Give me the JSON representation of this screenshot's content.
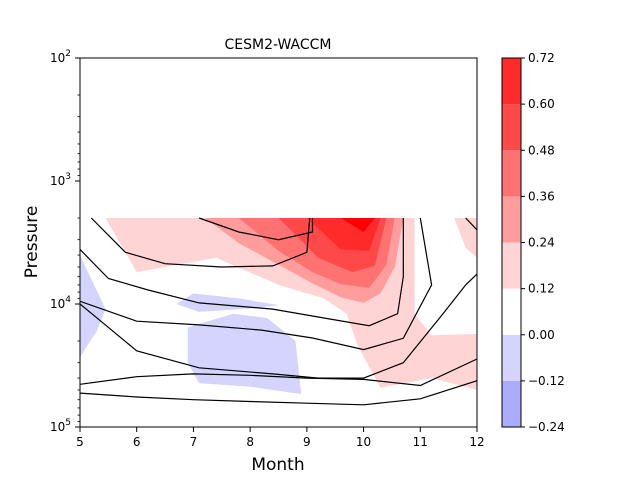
{
  "chart_data": {
    "type": "contour",
    "title": "CESM2-WACCM",
    "xlabel": "Month",
    "ylabel": "Pressure",
    "x_range": [
      5,
      12
    ],
    "y_range": [
      100000,
      100
    ],
    "y_scale": "log",
    "x_ticks": [
      "5",
      "6",
      "7",
      "8",
      "9",
      "10",
      "11",
      "12"
    ],
    "y_ticks": [
      {
        "value": 100,
        "base": "10",
        "exp": "2"
      },
      {
        "value": 1000,
        "base": "10",
        "exp": "3"
      },
      {
        "value": 10000,
        "base": "10",
        "exp": "4"
      },
      {
        "value": 100000,
        "base": "10",
        "exp": "5"
      }
    ],
    "grid": false,
    "colorbar": {
      "levels": [
        -0.24,
        -0.12,
        0.0,
        0.12,
        0.24,
        0.36,
        0.48,
        0.6,
        0.72
      ],
      "tick_labels": [
        "0.72",
        "0.60",
        "0.48",
        "0.36",
        "0.24",
        "0.12",
        "0.00",
        "−0.12",
        "−0.24"
      ],
      "colors": [
        "#ababff",
        "#d4d4ff",
        "#ffffff",
        "#ffd4d4",
        "#ff9c9c",
        "#ff7272",
        "#ff4848",
        "#ff2a2a",
        "#ff0000"
      ]
    },
    "filled_regions": [
      {
        "level": 0.12,
        "color": "#ffd4d4",
        "points": [
          [
            5.45,
            2000
          ],
          [
            10.9,
            2000
          ],
          [
            10.9,
            12000
          ],
          [
            11.2,
            18000
          ],
          [
            12,
            17500
          ],
          [
            12,
            50000
          ],
          [
            11.2,
            40000
          ],
          [
            10.3,
            48000
          ],
          [
            9.9,
            22000
          ],
          [
            9.7,
            12000
          ],
          [
            9.3,
            9000
          ],
          [
            8.5,
            7000
          ],
          [
            7.4,
            4200
          ],
          [
            6,
            5500
          ],
          [
            5.45,
            2000
          ]
        ]
      },
      {
        "level": 0.12,
        "color": "#ffd4d4",
        "points": [
          [
            11.6,
            2000
          ],
          [
            12,
            2000
          ],
          [
            12,
            4200
          ],
          [
            11.8,
            3500
          ],
          [
            11.6,
            2000
          ]
        ]
      },
      {
        "level": 0.24,
        "color": "#ff9c9c",
        "points": [
          [
            7.2,
            2000
          ],
          [
            10.7,
            2000
          ],
          [
            10.55,
            5000
          ],
          [
            10.3,
            8200
          ],
          [
            10,
            9800
          ],
          [
            9.6,
            8800
          ],
          [
            9.1,
            6800
          ],
          [
            8.5,
            4800
          ],
          [
            7.8,
            3200
          ],
          [
            7.2,
            2000
          ]
        ]
      },
      {
        "level": 0.36,
        "color": "#ff7272",
        "points": [
          [
            7.8,
            2000
          ],
          [
            10.55,
            2000
          ],
          [
            10.4,
            4800
          ],
          [
            10.1,
            7400
          ],
          [
            9.6,
            6900
          ],
          [
            9.1,
            5500
          ],
          [
            8.5,
            3700
          ],
          [
            7.8,
            2000
          ]
        ]
      },
      {
        "level": 0.48,
        "color": "#ff4848",
        "points": [
          [
            8.5,
            2000
          ],
          [
            10.4,
            2000
          ],
          [
            10.2,
            4900
          ],
          [
            9.8,
            5500
          ],
          [
            9.2,
            4200
          ],
          [
            8.5,
            2000
          ]
        ]
      },
      {
        "level": 0.6,
        "color": "#ff2a2a",
        "points": [
          [
            9.0,
            2000
          ],
          [
            10.3,
            2000
          ],
          [
            10.1,
            3700
          ],
          [
            9.6,
            3600
          ],
          [
            9.0,
            2000
          ]
        ]
      },
      {
        "level": 0.72,
        "color": "#ff0000",
        "points": [
          [
            9.6,
            2000
          ],
          [
            10.2,
            2000
          ],
          [
            10.0,
            2600
          ],
          [
            9.6,
            2000
          ]
        ]
      },
      {
        "level": -0.12,
        "color": "#d4d4ff",
        "points": [
          [
            5,
            4000
          ],
          [
            5.45,
            11000
          ],
          [
            5.3,
            16500
          ],
          [
            5,
            27000
          ]
        ]
      },
      {
        "level": -0.12,
        "color": "#d4d4ff",
        "points": [
          [
            6.7,
            10000
          ],
          [
            7.0,
            8200
          ],
          [
            7.8,
            9000
          ],
          [
            8.5,
            10200
          ],
          [
            8.1,
            10800
          ],
          [
            7.1,
            11600
          ],
          [
            6.7,
            10000
          ]
        ]
      },
      {
        "level": -0.12,
        "color": "#d4d4ff",
        "points": [
          [
            6.9,
            15500
          ],
          [
            7.7,
            12000
          ],
          [
            8.3,
            13000
          ],
          [
            8.8,
            20000
          ],
          [
            8.9,
            54000
          ],
          [
            8.0,
            47000
          ],
          [
            7.1,
            44000
          ],
          [
            6.9,
            30000
          ],
          [
            6.9,
            15500
          ]
        ]
      }
    ],
    "contour_lines": [
      {
        "points": [
          [
            5.2,
            2000
          ],
          [
            5.8,
            3800
          ],
          [
            6.5,
            4700
          ],
          [
            7.5,
            5000
          ],
          [
            8.4,
            4900
          ],
          [
            9.0,
            3800
          ],
          [
            9.05,
            2000
          ]
        ]
      },
      {
        "points": [
          [
            7.1,
            2000
          ],
          [
            7.8,
            2600
          ],
          [
            8.5,
            3000
          ],
          [
            9.1,
            2600
          ],
          [
            9.1,
            2000
          ]
        ]
      },
      {
        "points": [
          [
            5,
            3600
          ],
          [
            5.5,
            6200
          ],
          [
            6.2,
            7700
          ],
          [
            7.1,
            9800
          ],
          [
            8.4,
            11000
          ],
          [
            9.3,
            13000
          ],
          [
            10.1,
            15000
          ],
          [
            10.6,
            12000
          ],
          [
            10.7,
            6000
          ],
          [
            10.7,
            2000
          ]
        ]
      },
      {
        "points": [
          [
            5,
            9500
          ],
          [
            6,
            13800
          ],
          [
            7.1,
            14800
          ],
          [
            8.2,
            16300
          ],
          [
            9.1,
            18900
          ],
          [
            10,
            23500
          ],
          [
            10.7,
            19000
          ],
          [
            11.2,
            7000
          ],
          [
            11.0,
            2000
          ]
        ]
      },
      {
        "points": [
          [
            5,
            10000
          ],
          [
            6,
            24000
          ],
          [
            7.1,
            33000
          ],
          [
            8.4,
            37000
          ],
          [
            9.2,
            40000
          ],
          [
            10,
            40000
          ],
          [
            10.7,
            30000
          ],
          [
            11.4,
            12000
          ],
          [
            11.8,
            7000
          ],
          [
            12,
            5700
          ]
        ]
      },
      {
        "points": [
          [
            5,
            45000
          ],
          [
            6,
            39000
          ],
          [
            7,
            37000
          ],
          [
            8,
            38000
          ],
          [
            9,
            40000
          ],
          [
            10,
            41000
          ],
          [
            11,
            46000
          ],
          [
            12,
            28000
          ]
        ]
      },
      {
        "points": [
          [
            5,
            53000
          ],
          [
            6,
            57000
          ],
          [
            7,
            60000
          ],
          [
            8,
            62000
          ],
          [
            9,
            64000
          ],
          [
            10,
            66000
          ],
          [
            11,
            59000
          ],
          [
            12,
            42000
          ]
        ]
      },
      {
        "points": [
          [
            11.8,
            2000
          ],
          [
            12,
            2500
          ]
        ]
      }
    ]
  }
}
